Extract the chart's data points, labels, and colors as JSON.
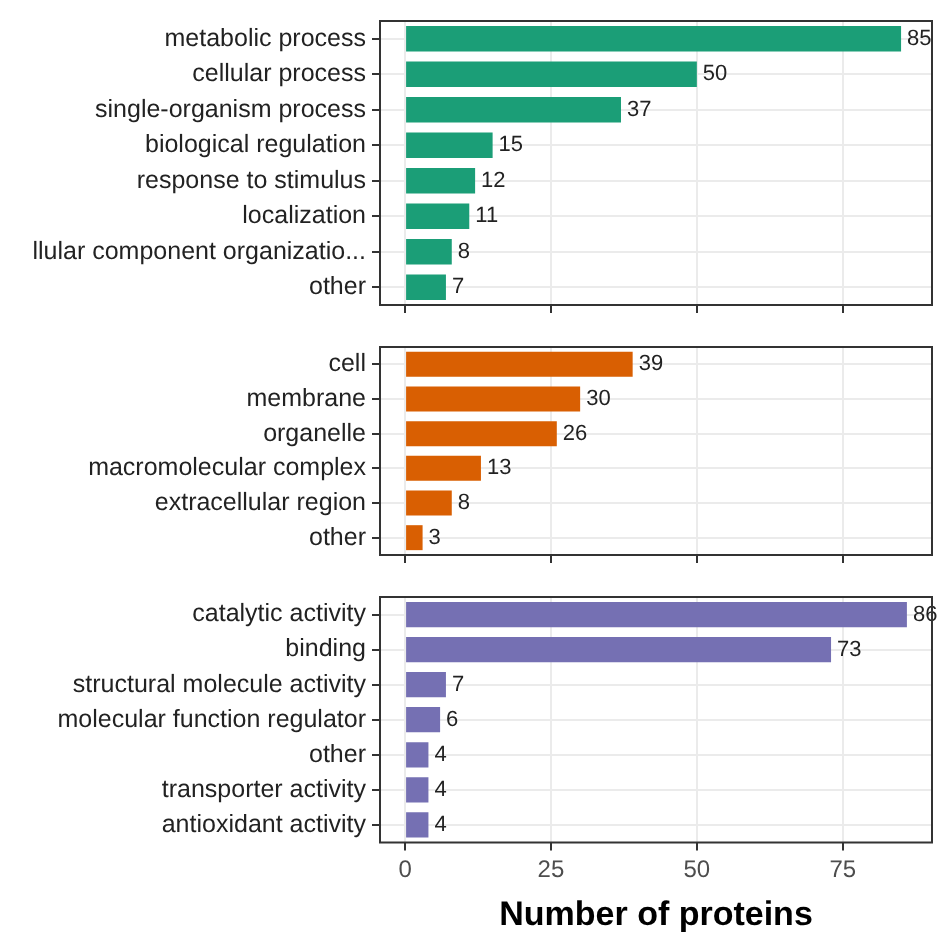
{
  "chart_data": [
    {
      "type": "bar",
      "orientation": "horizontal",
      "categories": [
        "metabolic process",
        "cellular process",
        "single-organism process",
        "biological regulation",
        "response to stimulus",
        "localization",
        "llular component organizatio...",
        "other"
      ],
      "values": [
        85,
        50,
        37,
        15,
        12,
        11,
        8,
        7
      ],
      "color": "#1b9e77",
      "xlim": [
        -4.3,
        90.3
      ],
      "xticks": [
        0,
        25,
        50,
        75
      ],
      "grid": true,
      "data_labels": true,
      "tick_labels": "y"
    },
    {
      "type": "bar",
      "orientation": "horizontal",
      "categories": [
        "cell",
        "membrane",
        "organelle",
        "macromolecular complex",
        "extracellular region",
        "other"
      ],
      "values": [
        39,
        30,
        26,
        13,
        8,
        3
      ],
      "color": "#d95f02",
      "xlim": [
        -4.3,
        90.3
      ],
      "xticks": [
        0,
        25,
        50,
        75
      ],
      "grid": true,
      "data_labels": true,
      "tick_labels": "y"
    },
    {
      "type": "bar",
      "orientation": "horizontal",
      "categories": [
        "catalytic activity",
        "binding",
        "structural molecule activity",
        "molecular function regulator",
        "other",
        "transporter activity",
        "antioxidant activity"
      ],
      "values": [
        86,
        73,
        7,
        6,
        4,
        4,
        4
      ],
      "color": "#7570b3",
      "xlim": [
        -4.3,
        90.3
      ],
      "xticks": [
        0,
        25,
        50,
        75
      ],
      "grid": true,
      "data_labels": true,
      "xlabel": "Number of proteins"
    }
  ]
}
